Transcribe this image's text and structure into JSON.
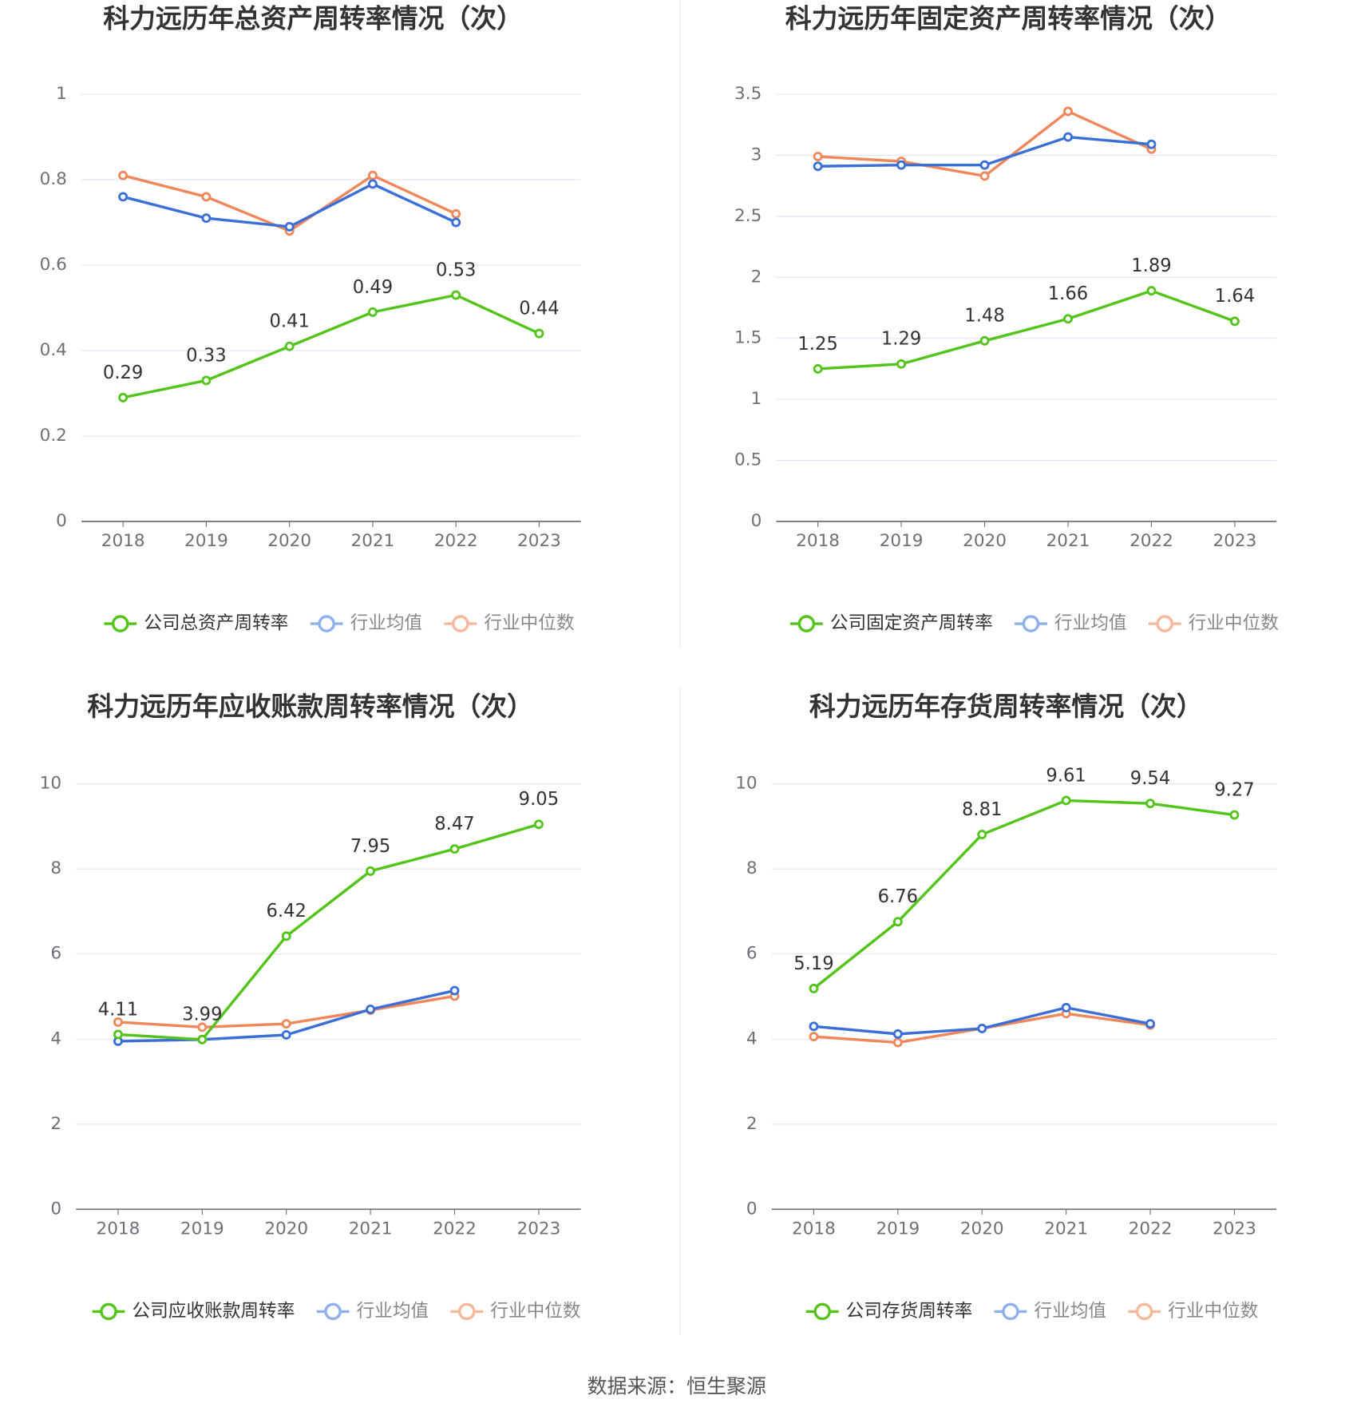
{
  "chart_data": [
    {
      "type": "line",
      "title": "科力远历年总资产周转率情况（次）",
      "categories": [
        "2018",
        "2019",
        "2020",
        "2021",
        "2022",
        "2023"
      ],
      "ylim": [
        0,
        1
      ],
      "yticks": [
        0,
        0.2,
        0.4,
        0.6,
        0.8,
        1
      ],
      "grid": true,
      "series": [
        {
          "name": "公司总资产周转率",
          "color": "#52c41a",
          "values": [
            0.29,
            0.33,
            0.41,
            0.49,
            0.53,
            0.44
          ]
        },
        {
          "name": "行业均值",
          "color": "#3b6fd8",
          "values": [
            0.76,
            0.71,
            0.69,
            0.79,
            0.7,
            null
          ]
        },
        {
          "name": "行业中位数",
          "color": "#f0875a",
          "values": [
            0.81,
            0.76,
            0.68,
            0.81,
            0.72,
            null
          ]
        }
      ]
    },
    {
      "type": "line",
      "title": "科力远历年固定资产周转率情况（次）",
      "categories": [
        "2018",
        "2019",
        "2020",
        "2021",
        "2022",
        "2023"
      ],
      "ylim": [
        0,
        3.5
      ],
      "yticks": [
        0,
        0.5,
        1,
        1.5,
        2,
        2.5,
        3,
        3.5
      ],
      "grid": true,
      "series": [
        {
          "name": "公司固定资产周转率",
          "color": "#52c41a",
          "values": [
            1.25,
            1.29,
            1.48,
            1.66,
            1.89,
            1.64
          ]
        },
        {
          "name": "行业均值",
          "color": "#3b6fd8",
          "values": [
            2.91,
            2.92,
            2.92,
            3.15,
            3.09,
            null
          ]
        },
        {
          "name": "行业中位数",
          "color": "#f0875a",
          "values": [
            2.99,
            2.95,
            2.83,
            3.36,
            3.05,
            null
          ]
        }
      ]
    },
    {
      "type": "line",
      "title": "科力远历年应收账款周转率情况（次）",
      "categories": [
        "2018",
        "2019",
        "2020",
        "2021",
        "2022",
        "2023"
      ],
      "ylim": [
        0,
        10
      ],
      "yticks": [
        0,
        2,
        4,
        6,
        8,
        10
      ],
      "grid": true,
      "series": [
        {
          "name": "公司应收账款周转率",
          "color": "#52c41a",
          "values": [
            4.11,
            3.99,
            6.42,
            7.95,
            8.47,
            9.05
          ]
        },
        {
          "name": "行业均值",
          "color": "#3b6fd8",
          "values": [
            3.95,
            3.99,
            4.1,
            4.7,
            5.14,
            null
          ]
        },
        {
          "name": "行业中位数",
          "color": "#f0875a",
          "values": [
            4.4,
            4.28,
            4.36,
            4.68,
            5.01,
            null
          ]
        }
      ]
    },
    {
      "type": "line",
      "title": "科力远历年存货周转率情况（次）",
      "categories": [
        "2018",
        "2019",
        "2020",
        "2021",
        "2022",
        "2023"
      ],
      "ylim": [
        0,
        10
      ],
      "yticks": [
        0,
        2,
        4,
        6,
        8,
        10
      ],
      "grid": true,
      "series": [
        {
          "name": "公司存货周转率",
          "color": "#52c41a",
          "values": [
            5.19,
            6.76,
            8.81,
            9.61,
            9.54,
            9.27
          ]
        },
        {
          "name": "行业均值",
          "color": "#3b6fd8",
          "values": [
            4.3,
            4.12,
            4.25,
            4.74,
            4.36,
            null
          ]
        },
        {
          "name": "行业中位数",
          "color": "#f0875a",
          "values": [
            4.06,
            3.92,
            4.25,
            4.6,
            4.33,
            null
          ]
        }
      ]
    }
  ],
  "source": "数据来源：恒生聚源"
}
